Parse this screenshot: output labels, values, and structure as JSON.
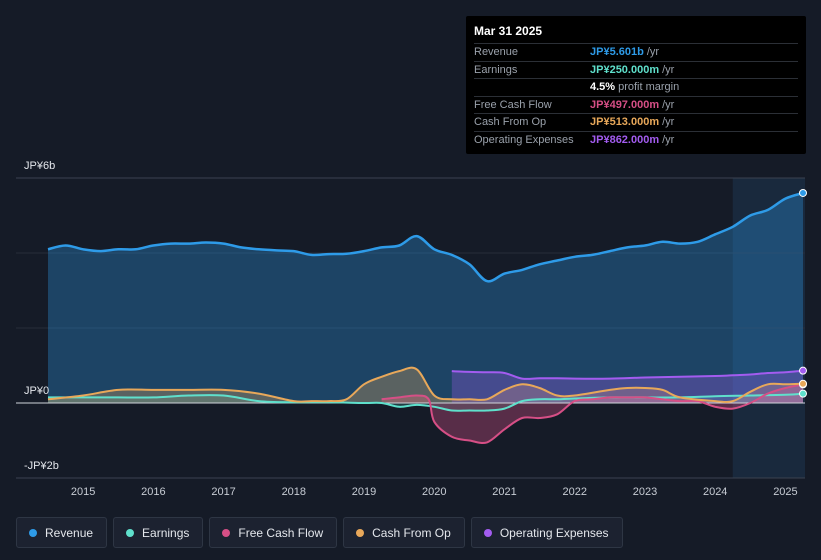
{
  "tooltip": {
    "date": "Mar 31 2025",
    "rows": [
      {
        "label": "Revenue",
        "value": "JP¥5.601b",
        "unit": "/yr",
        "color": "#2e9be8"
      },
      {
        "label": "Earnings",
        "value": "JP¥250.000m",
        "unit": "/yr",
        "color": "#5fe0cc"
      },
      {
        "label": "",
        "value": "4.5%",
        "unit": "profit margin",
        "color": "#ffffff"
      },
      {
        "label": "Free Cash Flow",
        "value": "JP¥497.000m",
        "unit": "/yr",
        "color": "#d64f86"
      },
      {
        "label": "Cash From Op",
        "value": "JP¥513.000m",
        "unit": "/yr",
        "color": "#e8a85a"
      },
      {
        "label": "Operating Expenses",
        "value": "JP¥862.000m",
        "unit": "/yr",
        "color": "#a35cf0"
      }
    ]
  },
  "legend": [
    {
      "label": "Revenue",
      "color": "#2e9be8"
    },
    {
      "label": "Earnings",
      "color": "#5fe0cc"
    },
    {
      "label": "Free Cash Flow",
      "color": "#d64f86"
    },
    {
      "label": "Cash From Op",
      "color": "#e8a85a"
    },
    {
      "label": "Operating Expenses",
      "color": "#a35cf0"
    }
  ],
  "chart_data": {
    "type": "area",
    "title": "",
    "unit": "JP¥ billions",
    "ylim": [
      -2,
      6
    ],
    "y_tick_labels": [
      {
        "value": 6,
        "label": "JP¥6b"
      },
      {
        "value": 0,
        "label": "JP¥0"
      },
      {
        "value": -2,
        "label": "-JP¥2b"
      }
    ],
    "x_ticks": [
      {
        "value": 2015,
        "label": "2015"
      },
      {
        "value": 2016,
        "label": "2016"
      },
      {
        "value": 2017,
        "label": "2017"
      },
      {
        "value": 2018,
        "label": "2018"
      },
      {
        "value": 2019,
        "label": "2019"
      },
      {
        "value": 2020,
        "label": "2020"
      },
      {
        "value": 2021,
        "label": "2021"
      },
      {
        "value": 2022,
        "label": "2022"
      },
      {
        "value": 2023,
        "label": "2023"
      },
      {
        "value": 2024,
        "label": "2024"
      },
      {
        "value": 2025,
        "label": "2025"
      }
    ],
    "xlim": [
      2014.5,
      2025.25
    ],
    "highlight_start": 2024.25,
    "series": [
      {
        "name": "Revenue",
        "color": "#2e9be8",
        "points": [
          [
            2014.5,
            4.1
          ],
          [
            2014.75,
            4.2
          ],
          [
            2015.0,
            4.1
          ],
          [
            2015.25,
            4.05
          ],
          [
            2015.5,
            4.1
          ],
          [
            2015.75,
            4.1
          ],
          [
            2016.0,
            4.2
          ],
          [
            2016.25,
            4.25
          ],
          [
            2016.5,
            4.25
          ],
          [
            2016.75,
            4.28
          ],
          [
            2017.0,
            4.25
          ],
          [
            2017.25,
            4.15
          ],
          [
            2017.5,
            4.1
          ],
          [
            2017.75,
            4.07
          ],
          [
            2018.0,
            4.05
          ],
          [
            2018.25,
            3.95
          ],
          [
            2018.5,
            3.97
          ],
          [
            2018.75,
            3.98
          ],
          [
            2019.0,
            4.05
          ],
          [
            2019.25,
            4.15
          ],
          [
            2019.5,
            4.2
          ],
          [
            2019.75,
            4.45
          ],
          [
            2020.0,
            4.1
          ],
          [
            2020.25,
            3.95
          ],
          [
            2020.5,
            3.7
          ],
          [
            2020.75,
            3.25
          ],
          [
            2021.0,
            3.45
          ],
          [
            2021.25,
            3.55
          ],
          [
            2021.5,
            3.7
          ],
          [
            2021.75,
            3.8
          ],
          [
            2022.0,
            3.9
          ],
          [
            2022.25,
            3.95
          ],
          [
            2022.5,
            4.05
          ],
          [
            2022.75,
            4.15
          ],
          [
            2023.0,
            4.2
          ],
          [
            2023.25,
            4.3
          ],
          [
            2023.5,
            4.25
          ],
          [
            2023.75,
            4.3
          ],
          [
            2024.0,
            4.5
          ],
          [
            2024.25,
            4.7
          ],
          [
            2024.5,
            5.0
          ],
          [
            2024.75,
            5.15
          ],
          [
            2025.0,
            5.45
          ],
          [
            2025.25,
            5.601
          ]
        ]
      },
      {
        "name": "Earnings",
        "color": "#5fe0cc",
        "points": [
          [
            2014.5,
            0.15
          ],
          [
            2015.0,
            0.15
          ],
          [
            2015.5,
            0.15
          ],
          [
            2016.0,
            0.15
          ],
          [
            2016.5,
            0.2
          ],
          [
            2017.0,
            0.2
          ],
          [
            2017.5,
            0.05
          ],
          [
            2018.0,
            0.02
          ],
          [
            2018.5,
            0.02
          ],
          [
            2019.0,
            0.0
          ],
          [
            2019.25,
            0.0
          ],
          [
            2019.5,
            -0.1
          ],
          [
            2019.75,
            -0.05
          ],
          [
            2020.0,
            -0.1
          ],
          [
            2020.25,
            -0.2
          ],
          [
            2020.5,
            -0.2
          ],
          [
            2020.75,
            -0.2
          ],
          [
            2021.0,
            -0.15
          ],
          [
            2021.25,
            0.05
          ],
          [
            2021.5,
            0.1
          ],
          [
            2021.75,
            0.1
          ],
          [
            2022.0,
            0.12
          ],
          [
            2022.5,
            0.15
          ],
          [
            2023.0,
            0.15
          ],
          [
            2023.5,
            0.15
          ],
          [
            2024.0,
            0.18
          ],
          [
            2024.5,
            0.2
          ],
          [
            2025.0,
            0.22
          ],
          [
            2025.25,
            0.25
          ]
        ]
      },
      {
        "name": "Free Cash Flow",
        "color": "#d64f86",
        "points": [
          [
            2019.25,
            0.1
          ],
          [
            2019.5,
            0.15
          ],
          [
            2019.75,
            0.2
          ],
          [
            2019.92,
            0.1
          ],
          [
            2020.0,
            -0.5
          ],
          [
            2020.25,
            -0.9
          ],
          [
            2020.5,
            -1.0
          ],
          [
            2020.75,
            -1.05
          ],
          [
            2021.0,
            -0.7
          ],
          [
            2021.25,
            -0.4
          ],
          [
            2021.5,
            -0.4
          ],
          [
            2021.75,
            -0.3
          ],
          [
            2022.0,
            0.05
          ],
          [
            2022.25,
            0.1
          ],
          [
            2022.5,
            0.15
          ],
          [
            2022.75,
            0.15
          ],
          [
            2023.0,
            0.15
          ],
          [
            2023.25,
            0.1
          ],
          [
            2023.5,
            0.05
          ],
          [
            2023.75,
            0.05
          ],
          [
            2024.0,
            -0.1
          ],
          [
            2024.25,
            -0.15
          ],
          [
            2024.5,
            0.0
          ],
          [
            2024.75,
            0.25
          ],
          [
            2025.0,
            0.4
          ],
          [
            2025.25,
            0.497
          ]
        ]
      },
      {
        "name": "Cash From Op",
        "color": "#e8a85a",
        "points": [
          [
            2014.5,
            0.1
          ],
          [
            2015.0,
            0.2
          ],
          [
            2015.5,
            0.35
          ],
          [
            2016.0,
            0.35
          ],
          [
            2016.5,
            0.35
          ],
          [
            2017.0,
            0.35
          ],
          [
            2017.5,
            0.25
          ],
          [
            2018.0,
            0.05
          ],
          [
            2018.25,
            0.05
          ],
          [
            2018.5,
            0.05
          ],
          [
            2018.75,
            0.1
          ],
          [
            2019.0,
            0.5
          ],
          [
            2019.25,
            0.7
          ],
          [
            2019.5,
            0.85
          ],
          [
            2019.75,
            0.9
          ],
          [
            2020.0,
            0.2
          ],
          [
            2020.25,
            0.1
          ],
          [
            2020.5,
            0.1
          ],
          [
            2020.75,
            0.1
          ],
          [
            2021.0,
            0.35
          ],
          [
            2021.25,
            0.5
          ],
          [
            2021.5,
            0.4
          ],
          [
            2021.75,
            0.2
          ],
          [
            2022.0,
            0.2
          ],
          [
            2022.5,
            0.35
          ],
          [
            2022.75,
            0.4
          ],
          [
            2023.0,
            0.4
          ],
          [
            2023.25,
            0.35
          ],
          [
            2023.5,
            0.15
          ],
          [
            2024.0,
            0.05
          ],
          [
            2024.25,
            0.05
          ],
          [
            2024.5,
            0.3
          ],
          [
            2024.75,
            0.5
          ],
          [
            2025.0,
            0.5
          ],
          [
            2025.25,
            0.513
          ]
        ]
      },
      {
        "name": "Operating Expenses",
        "color": "#a35cf0",
        "points": [
          [
            2020.25,
            0.85
          ],
          [
            2020.5,
            0.83
          ],
          [
            2020.75,
            0.82
          ],
          [
            2021.0,
            0.8
          ],
          [
            2021.25,
            0.65
          ],
          [
            2021.5,
            0.66
          ],
          [
            2021.75,
            0.66
          ],
          [
            2022.0,
            0.65
          ],
          [
            2022.5,
            0.65
          ],
          [
            2023.0,
            0.68
          ],
          [
            2023.5,
            0.7
          ],
          [
            2024.0,
            0.72
          ],
          [
            2024.25,
            0.74
          ],
          [
            2024.5,
            0.76
          ],
          [
            2024.75,
            0.8
          ],
          [
            2025.0,
            0.82
          ],
          [
            2025.25,
            0.862
          ]
        ]
      }
    ]
  }
}
